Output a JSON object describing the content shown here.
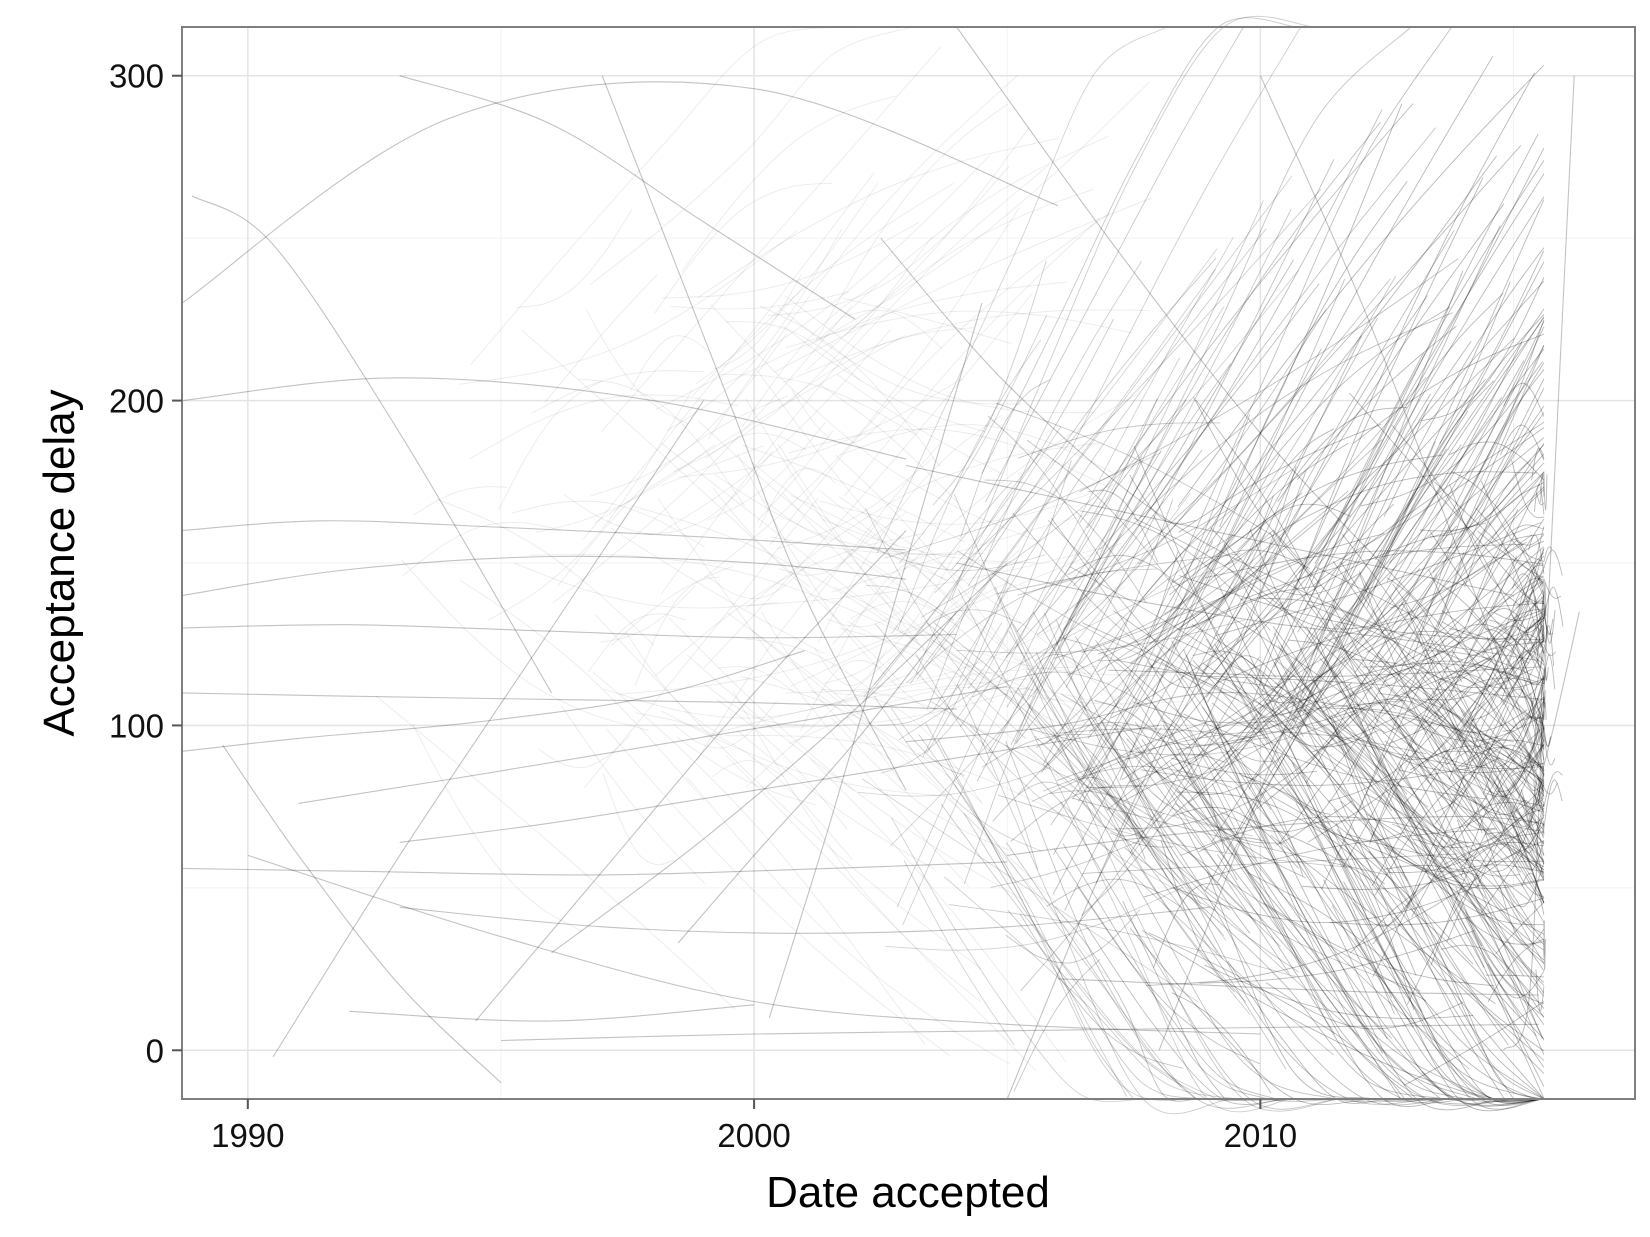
{
  "chart_data": {
    "type": "line",
    "title": "",
    "xlabel": "Date accepted",
    "ylabel": "Acceptance delay",
    "xlim": [
      1988.7,
      2017.4
    ],
    "ylim": [
      -15,
      315
    ],
    "x_ticks": [
      1990,
      2000,
      2010
    ],
    "y_ticks": [
      0,
      100,
      200,
      300
    ],
    "x_minor_ticks": [
      1995,
      2005,
      2015
    ],
    "y_minor_ticks": [
      50,
      150,
      250
    ],
    "grid": true,
    "series": [
      {
        "x": [
          1988.7,
          1991.0,
          1994.5,
          1998.0,
          2001.0
        ],
        "y": [
          92,
          96,
          101,
          109,
          123
        ]
      },
      {
        "x": [
          1988.7,
          1992.0,
          1996.0,
          2000.0,
          2003.0
        ],
        "y": [
          140,
          148,
          152,
          150,
          145
        ]
      },
      {
        "x": [
          1988.7,
          1992.0,
          1996.0,
          2000.0,
          2004.0
        ],
        "y": [
          110,
          109,
          108,
          107,
          105
        ]
      },
      {
        "x": [
          1988.7,
          1992.5,
          1997.0,
          2001.5,
          2005.0
        ],
        "y": [
          56,
          55,
          54,
          56,
          58
        ]
      },
      {
        "x": [
          1988.9,
          1990.5,
          1993.0,
          1996.0
        ],
        "y": [
          263,
          248,
          190,
          110
        ]
      },
      {
        "x": [
          1988.7,
          1991.5,
          1995.0,
          1999.0,
          2003.0
        ],
        "y": [
          160,
          163,
          161,
          158,
          154
        ]
      },
      {
        "x": [
          1988.7,
          1992.0,
          1996.0,
          2000.0,
          2004.0
        ],
        "y": [
          130,
          131,
          129,
          127,
          128
        ]
      },
      {
        "x": [
          1988.7,
          1993.0,
          1998.0,
          2003.0
        ],
        "y": [
          200,
          207,
          200,
          182
        ]
      },
      {
        "x": [
          1989.5,
          1991.0,
          1993.0,
          1995.0
        ],
        "y": [
          94,
          60,
          20,
          -10
        ]
      },
      {
        "x": [
          1988.7,
          1994.0,
          2000.0,
          2006.0
        ],
        "y": [
          230,
          287,
          296,
          260
        ]
      },
      {
        "x": [
          1990.5,
          1993.0,
          1996.0,
          1999.0
        ],
        "y": [
          -2,
          60,
          130,
          200
        ]
      },
      {
        "x": [
          1993.0,
          1996.0,
          1999.0,
          2002.0
        ],
        "y": [
          300,
          285,
          255,
          225
        ]
      },
      {
        "x": [
          1991.0,
          1995.0,
          2000.0,
          2005.0
        ],
        "y": [
          76,
          86,
          99,
          112
        ]
      },
      {
        "x": [
          1993.0,
          1996.0,
          2000.0,
          2004.0,
          2008.0
        ],
        "y": [
          64,
          70,
          80,
          90,
          100
        ]
      },
      {
        "x": [
          1993.0,
          1997.0,
          2001.0,
          2005.0,
          2009.0
        ],
        "y": [
          44,
          38,
          36,
          38,
          44
        ]
      },
      {
        "x": [
          1992.0,
          1996.0,
          2000.0
        ],
        "y": [
          12,
          9,
          14
        ]
      },
      {
        "x": [
          1990.0,
          1995.0,
          2000.0,
          2005.0,
          2010.0
        ],
        "y": [
          60,
          35,
          15,
          8,
          5
        ]
      },
      {
        "x": [
          1995.0,
          2000.0,
          2005.0,
          2010.0,
          2015.5
        ],
        "y": [
          3,
          5,
          6,
          7,
          8
        ]
      },
      {
        "x": [
          1994.5,
          1997.0,
          2000.0,
          2003.0
        ],
        "y": [
          9,
          55,
          110,
          160
        ]
      },
      {
        "x": [
          1997.0,
          1999.5,
          2001.0,
          2003.0
        ],
        "y": [
          300,
          200,
          140,
          80
        ]
      },
      {
        "x": [
          1996.0,
          1999.0,
          2002.0,
          2005.0
        ],
        "y": [
          30,
          65,
          105,
          150
        ]
      },
      {
        "x": [
          1998.5,
          2000.0,
          2002.0,
          2004.0
        ],
        "y": [
          33,
          60,
          95,
          135
        ]
      },
      {
        "x": [
          2000.3,
          2001.5,
          2003.0,
          2004.5
        ],
        "y": [
          10,
          70,
          150,
          230
        ]
      },
      {
        "x": [
          2002.5,
          2005.0,
          2008.0,
          2011.0,
          2014.0
        ],
        "y": [
          250,
          205,
          165,
          140,
          120
        ]
      },
      {
        "x": [
          2003.0,
          2006.0,
          2009.0,
          2012.0,
          2015.0
        ],
        "y": [
          95,
          100,
          110,
          105,
          95
        ]
      },
      {
        "x": [
          2004.0,
          2007.0,
          2010.0,
          2013.0,
          2015.5
        ],
        "y": [
          150,
          140,
          132,
          126,
          120
        ]
      },
      {
        "x": [
          2005.0,
          2008.0,
          2011.0,
          2014.0,
          2015.5
        ],
        "y": [
          60,
          66,
          70,
          72,
          70
        ]
      },
      {
        "x": [
          2007.0,
          2009.0,
          2011.0,
          2013.0,
          2015.5
        ],
        "y": [
          117,
          116,
          115,
          116,
          118
        ]
      },
      {
        "x": [
          2006.0,
          2009.0,
          2012.0,
          2015.5
        ],
        "y": [
          22,
          20,
          18,
          17
        ]
      },
      {
        "x": [
          2004.0,
          2007.0,
          2010.0,
          2013.0,
          2015.5
        ],
        "y": [
          315,
          250,
          190,
          140,
          100
        ]
      },
      {
        "x": [
          2005.0,
          2007.0,
          2009.5,
          2012.0
        ],
        "y": [
          -15,
          60,
          140,
          220
        ]
      },
      {
        "x": [
          2008.0,
          2010.0,
          2012.0,
          2014.0
        ],
        "y": [
          0,
          80,
          160,
          240
        ]
      },
      {
        "x": [
          2003.0,
          2006.0,
          2009.0,
          2012.0,
          2015.0
        ],
        "y": [
          180,
          170,
          160,
          150,
          140
        ]
      },
      {
        "x": [
          2010.0,
          2012.0,
          2014.0,
          2015.5
        ],
        "y": [
          300,
          230,
          150,
          90
        ]
      },
      {
        "x": [
          2014.8,
          2015.3,
          2015.6,
          2016.2
        ],
        "y": [
          0,
          15,
          110,
          300
        ]
      },
      {
        "x": [
          2015.3,
          2015.8,
          2016.3
        ],
        "y": [
          70,
          100,
          135
        ]
      }
    ]
  }
}
